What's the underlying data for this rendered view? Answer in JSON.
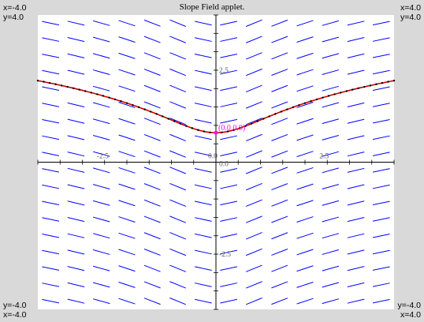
{
  "window": {
    "title": "Slope Field applet."
  },
  "corners": {
    "top_left_x": "x=-4.0",
    "top_left_y": "y=4.0",
    "top_right_x": "x=4.0",
    "top_right_y": "y=4.0",
    "bottom_left_y": "y=-4.0",
    "bottom_left_x": "x=-4.0",
    "bottom_right_y": "y=-4.0",
    "bottom_right_x": "x=4.0"
  },
  "axes": {
    "x_range": [
      -4.0,
      4.0
    ],
    "y_range": [
      -4.0,
      4.0
    ],
    "x_tick_labels": [
      {
        "value": -2.5,
        "label": "-2.5"
      },
      {
        "value": 0.0,
        "label": "0.0"
      },
      {
        "value": 2.5,
        "label": "2.5"
      }
    ],
    "y_tick_labels": [
      {
        "value": 2.5,
        "label": "2.5"
      },
      {
        "value": 0.0,
        "label": "0.0"
      },
      {
        "value": -2.5,
        "label": "-2.5"
      }
    ]
  },
  "initial_point": {
    "x": 0.0,
    "y": 0.8,
    "label": "(0.0,0.8)"
  },
  "colors": {
    "slope_segments": "#0000ff",
    "solution_curve": "#cc0000",
    "solution_points": "#000000",
    "initial_point": "#ff00ff",
    "axes": "#000000",
    "plot_background": "#ffffff",
    "frame_background": "#d9d9d9"
  }
}
